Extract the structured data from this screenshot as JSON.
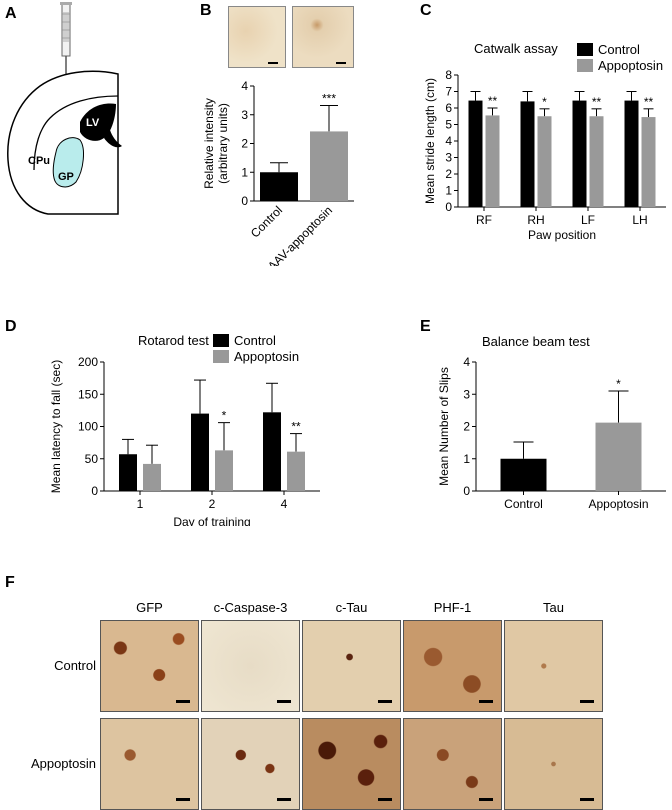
{
  "panels": {
    "a": "A",
    "b": "B",
    "c": "C",
    "d": "D",
    "e": "E",
    "f": "F"
  },
  "schematic": {
    "lv": "LV",
    "cpu": "CPu",
    "gp": "GP"
  },
  "colors": {
    "control": "#000000",
    "treatment": "#999999",
    "gp_fill": "#b9ecec",
    "stain_bg": "#e9dcc0",
    "stain_dark": "#6b2f14"
  },
  "chart_data": [
    {
      "id": "B",
      "type": "bar",
      "categories": [
        "Control",
        "AAV-appoptosin"
      ],
      "values": [
        1.0,
        2.42
      ],
      "errors": [
        0.33,
        0.9
      ],
      "significance": [
        "",
        "***"
      ],
      "ylabel": "Relative intensity\n(arbitrary units)",
      "ylim": [
        0,
        4
      ],
      "yticks": [
        0,
        1,
        2,
        3,
        4
      ]
    },
    {
      "id": "C",
      "type": "bar",
      "title": "Catwalk assay",
      "categories": [
        "RF",
        "RH",
        "LF",
        "LH"
      ],
      "series": [
        {
          "name": "Control",
          "values": [
            6.45,
            6.4,
            6.45,
            6.45
          ],
          "errors": [
            0.55,
            0.6,
            0.55,
            0.55
          ]
        },
        {
          "name": "Appoptosin",
          "values": [
            5.55,
            5.5,
            5.5,
            5.45
          ],
          "errors": [
            0.45,
            0.45,
            0.45,
            0.5
          ]
        }
      ],
      "significance": [
        "**",
        "*",
        "**",
        "**"
      ],
      "xlabel": "Paw position",
      "ylabel": "Mean stride length (cm)",
      "ylim": [
        0,
        8
      ],
      "yticks": [
        0,
        1,
        2,
        3,
        4,
        5,
        6,
        7,
        8
      ],
      "legend": "top-right"
    },
    {
      "id": "D",
      "type": "bar",
      "title": "Rotarod test",
      "categories": [
        "1",
        "2",
        "4"
      ],
      "series": [
        {
          "name": "Control",
          "values": [
            57,
            120,
            122
          ],
          "errors": [
            23,
            52,
            45
          ]
        },
        {
          "name": "Appoptosin",
          "values": [
            42,
            63,
            61
          ],
          "errors": [
            29,
            43,
            28
          ]
        }
      ],
      "significance": [
        "",
        "*",
        "**"
      ],
      "xlabel": "Day of training",
      "ylabel": "Mean latency to fall (sec)",
      "ylim": [
        0,
        200
      ],
      "yticks": [
        0,
        50,
        100,
        150,
        200
      ],
      "legend": "top-right"
    },
    {
      "id": "E",
      "type": "bar",
      "title": "Balance beam test",
      "categories": [
        "Control",
        "Appoptosin"
      ],
      "values": [
        1.0,
        2.12
      ],
      "errors": [
        0.52,
        0.98
      ],
      "significance": [
        "",
        "*"
      ],
      "ylabel": "Mean Number of Slips",
      "ylim": [
        0,
        4
      ],
      "yticks": [
        0,
        1,
        2,
        3,
        4
      ]
    }
  ],
  "micrographs": {
    "columns": [
      "GFP",
      "c-Caspase-3",
      "c-Tau",
      "PHF-1",
      "Tau"
    ],
    "rows": [
      "Control",
      "Appoptosin"
    ]
  }
}
